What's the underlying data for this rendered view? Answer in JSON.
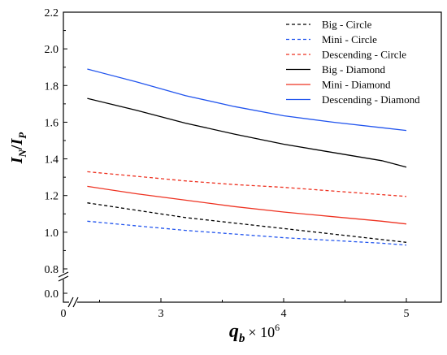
{
  "chart_data": {
    "type": "line",
    "ylabel": {
      "main": "I",
      "main_sub": "N",
      "sep": "/",
      "den": "I",
      "den_sub": "P"
    },
    "xlabel": {
      "main": "q",
      "main_sub": "b",
      "tail": "× 10",
      "tail_sup": "6"
    },
    "x_ticks": [
      {
        "v": 0,
        "label": "0"
      },
      {
        "v": 3,
        "label": "3"
      },
      {
        "v": 4,
        "label": "4"
      },
      {
        "v": 5,
        "label": "5"
      }
    ],
    "y_ticks": [
      {
        "v": 0.0,
        "label": "0.0"
      },
      {
        "v": 0.8,
        "label": "0.8"
      },
      {
        "v": 1.0,
        "label": "1.0"
      },
      {
        "v": 1.2,
        "label": "1.2"
      },
      {
        "v": 1.4,
        "label": "1.4"
      },
      {
        "v": 1.6,
        "label": "1.6"
      },
      {
        "v": 1.8,
        "label": "1.8"
      },
      {
        "v": 2.0,
        "label": "2.0"
      },
      {
        "v": 2.2,
        "label": "2.2"
      }
    ],
    "xlim": [
      0,
      5.5
    ],
    "ylim_upper": [
      0.8,
      2.2
    ],
    "x_break_between": [
      0,
      2.4
    ],
    "y_break_between": [
      0.0,
      0.8
    ],
    "grid": false,
    "legend_position": "top-right",
    "x": [
      2.4,
      2.8,
      3.2,
      3.6,
      4.0,
      4.4,
      4.8,
      5.0
    ],
    "series": [
      {
        "name": "Big - Circle",
        "color": "#000000",
        "dash": "dashed",
        "values": [
          1.16,
          1.12,
          1.08,
          1.05,
          1.02,
          0.99,
          0.96,
          0.945
        ]
      },
      {
        "name": "Mini - Circle",
        "color": "#2255ee",
        "dash": "dashed",
        "values": [
          1.06,
          1.035,
          1.01,
          0.99,
          0.97,
          0.955,
          0.94,
          0.93
        ]
      },
      {
        "name": "Descending - Circle",
        "color": "#ee3322",
        "dash": "dashed",
        "values": [
          1.33,
          1.305,
          1.28,
          1.26,
          1.245,
          1.225,
          1.205,
          1.195
        ]
      },
      {
        "name": "Big - Diamond",
        "color": "#000000",
        "dash": "solid",
        "values": [
          1.73,
          1.665,
          1.595,
          1.535,
          1.48,
          1.435,
          1.39,
          1.355
        ]
      },
      {
        "name": "Mini - Diamond",
        "color": "#ee3322",
        "dash": "solid",
        "values": [
          1.25,
          1.21,
          1.175,
          1.14,
          1.11,
          1.085,
          1.06,
          1.045
        ]
      },
      {
        "name": "Descending - Diamond",
        "color": "#2255ee",
        "dash": "solid",
        "values": [
          1.89,
          1.82,
          1.745,
          1.685,
          1.635,
          1.6,
          1.57,
          1.555
        ]
      }
    ]
  }
}
